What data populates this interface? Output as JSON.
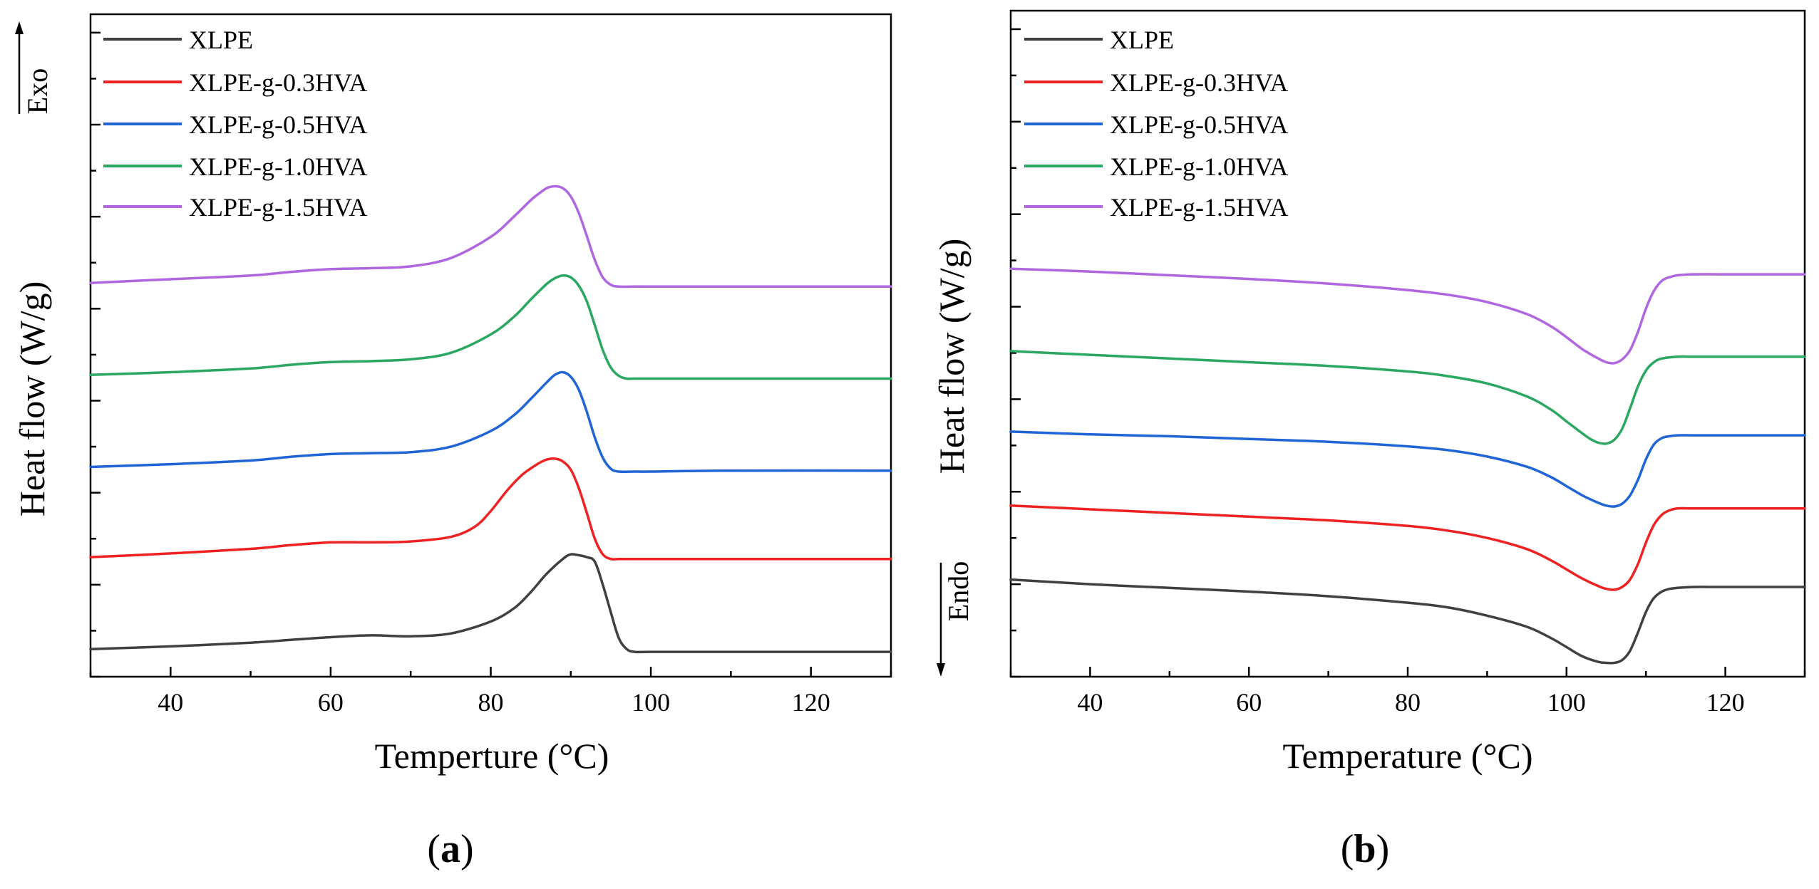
{
  "chart_data": [
    {
      "type": "line",
      "panel": "a",
      "panel_label": "a",
      "xlabel": "Temperture (°C)",
      "ylabel": "Heat flow (W/g)",
      "direction_label": "Exo",
      "xlim": [
        30,
        130
      ],
      "xticks": [
        40,
        60,
        80,
        100,
        120
      ],
      "y_ticks_labeled": false,
      "ylim": [
        0,
        7.2
      ],
      "legend_position": "top-left",
      "series": [
        {
          "name": "XLPE",
          "color": "#404040",
          "x": [
            30,
            40,
            50,
            55,
            60,
            65,
            70,
            75,
            80,
            83,
            85,
            87,
            89,
            90,
            91,
            92,
            93,
            94,
            95,
            96,
            97,
            98,
            100,
            110,
            130
          ],
          "y": [
            0.3,
            0.33,
            0.37,
            0.4,
            0.43,
            0.45,
            0.44,
            0.47,
            0.6,
            0.75,
            0.92,
            1.12,
            1.28,
            1.33,
            1.32,
            1.3,
            1.25,
            1.0,
            0.7,
            0.42,
            0.3,
            0.27,
            0.27,
            0.27,
            0.27
          ]
        },
        {
          "name": "XLPE-g-0.3HVA",
          "color": "#ee2222",
          "x": [
            30,
            40,
            50,
            55,
            60,
            65,
            70,
            75,
            78,
            80,
            82,
            84,
            86,
            87,
            88,
            89,
            90,
            91,
            92,
            93,
            94,
            95,
            96,
            98,
            100,
            110,
            130
          ],
          "y": [
            1.3,
            1.34,
            1.39,
            1.43,
            1.46,
            1.46,
            1.47,
            1.52,
            1.63,
            1.8,
            2.02,
            2.2,
            2.32,
            2.36,
            2.37,
            2.34,
            2.25,
            2.05,
            1.78,
            1.5,
            1.33,
            1.28,
            1.28,
            1.28,
            1.28,
            1.28,
            1.28
          ]
        },
        {
          "name": "XLPE-g-0.5HVA",
          "color": "#1f65d6",
          "x": [
            30,
            40,
            50,
            55,
            60,
            65,
            70,
            75,
            80,
            83,
            85,
            87,
            88,
            89,
            90,
            91,
            92,
            93,
            94,
            95,
            96,
            98,
            100,
            110,
            130
          ],
          "y": [
            2.28,
            2.31,
            2.35,
            2.39,
            2.42,
            2.43,
            2.44,
            2.5,
            2.67,
            2.85,
            3.02,
            3.2,
            3.28,
            3.31,
            3.26,
            3.12,
            2.88,
            2.6,
            2.38,
            2.26,
            2.23,
            2.23,
            2.23,
            2.24,
            2.24
          ]
        },
        {
          "name": "XLPE-g-1.0HVA",
          "color": "#2aa760",
          "x": [
            30,
            40,
            50,
            55,
            60,
            65,
            70,
            75,
            80,
            83,
            85,
            87,
            88,
            89,
            90,
            91,
            92,
            93,
            94,
            95,
            96,
            97,
            98,
            100,
            110,
            130
          ],
          "y": [
            3.28,
            3.31,
            3.35,
            3.39,
            3.42,
            3.43,
            3.45,
            3.52,
            3.72,
            3.92,
            4.1,
            4.27,
            4.33,
            4.36,
            4.34,
            4.25,
            4.08,
            3.82,
            3.55,
            3.36,
            3.27,
            3.24,
            3.24,
            3.24,
            3.24,
            3.24
          ]
        },
        {
          "name": "XLPE-g-1.5HVA",
          "color": "#b066e0",
          "x": [
            30,
            40,
            50,
            55,
            60,
            65,
            70,
            75,
            80,
            83,
            85,
            86,
            87,
            88,
            89,
            90,
            91,
            92,
            93,
            94,
            95,
            96,
            98,
            100,
            110,
            130
          ],
          "y": [
            4.28,
            4.32,
            4.36,
            4.4,
            4.43,
            4.44,
            4.46,
            4.55,
            4.78,
            5.01,
            5.18,
            5.25,
            5.31,
            5.33,
            5.31,
            5.22,
            5.04,
            4.79,
            4.53,
            4.34,
            4.26,
            4.24,
            4.24,
            4.24,
            4.24,
            4.24
          ]
        }
      ]
    },
    {
      "type": "line",
      "panel": "b",
      "panel_label": "b",
      "xlabel": "Temperature (°C)",
      "ylabel": "Heat flow (W/g)",
      "direction_label": "Endo",
      "xlim": [
        30,
        130
      ],
      "xticks": [
        40,
        60,
        80,
        100,
        120
      ],
      "y_ticks_labeled": false,
      "ylim": [
        0,
        7.2
      ],
      "legend_position": "top-left",
      "series": [
        {
          "name": "XLPE",
          "color": "#404040",
          "x": [
            30,
            40,
            50,
            60,
            70,
            80,
            85,
            90,
            95,
            98,
            100,
            102,
            104,
            105,
            106,
            107,
            108,
            109,
            110,
            111,
            112,
            113,
            114,
            116,
            120,
            130
          ],
          "y": [
            1.05,
            1.0,
            0.96,
            0.92,
            0.87,
            0.8,
            0.75,
            0.66,
            0.54,
            0.42,
            0.32,
            0.22,
            0.16,
            0.15,
            0.15,
            0.18,
            0.28,
            0.48,
            0.7,
            0.85,
            0.92,
            0.95,
            0.96,
            0.97,
            0.97,
            0.97
          ]
        },
        {
          "name": "XLPE-g-0.3HVA",
          "color": "#ee2222",
          "x": [
            30,
            40,
            50,
            60,
            70,
            80,
            85,
            90,
            95,
            98,
            100,
            102,
            104,
            105,
            106,
            107,
            108,
            109,
            110,
            111,
            112,
            113,
            114,
            116,
            120,
            130
          ],
          "y": [
            1.85,
            1.81,
            1.77,
            1.73,
            1.69,
            1.63,
            1.58,
            1.5,
            1.38,
            1.26,
            1.16,
            1.06,
            0.98,
            0.95,
            0.94,
            0.97,
            1.05,
            1.22,
            1.45,
            1.64,
            1.75,
            1.8,
            1.82,
            1.82,
            1.82,
            1.82
          ]
        },
        {
          "name": "XLPE-g-0.5HVA",
          "color": "#1f65d6",
          "x": [
            30,
            40,
            50,
            60,
            70,
            80,
            85,
            90,
            95,
            98,
            100,
            102,
            104,
            105,
            106,
            107,
            108,
            109,
            110,
            111,
            112,
            113,
            114,
            116,
            120,
            130
          ],
          "y": [
            2.65,
            2.62,
            2.6,
            2.57,
            2.54,
            2.49,
            2.45,
            2.38,
            2.27,
            2.16,
            2.06,
            1.96,
            1.88,
            1.85,
            1.84,
            1.87,
            1.96,
            2.13,
            2.35,
            2.51,
            2.58,
            2.6,
            2.61,
            2.61,
            2.61,
            2.61
          ]
        },
        {
          "name": "XLPE-g-1.0HVA",
          "color": "#2aa760",
          "x": [
            30,
            40,
            50,
            60,
            70,
            80,
            85,
            90,
            95,
            98,
            100,
            102,
            103,
            104,
            105,
            106,
            107,
            108,
            109,
            110,
            111,
            112,
            114,
            116,
            120,
            130
          ],
          "y": [
            3.52,
            3.48,
            3.44,
            3.4,
            3.36,
            3.3,
            3.25,
            3.17,
            3.03,
            2.89,
            2.76,
            2.63,
            2.57,
            2.53,
            2.52,
            2.56,
            2.68,
            2.9,
            3.14,
            3.31,
            3.4,
            3.44,
            3.46,
            3.46,
            3.46,
            3.46
          ]
        },
        {
          "name": "XLPE-g-1.5HVA",
          "color": "#b066e0",
          "x": [
            30,
            40,
            50,
            60,
            70,
            80,
            85,
            90,
            95,
            98,
            100,
            102,
            104,
            105,
            106,
            107,
            108,
            109,
            110,
            111,
            112,
            113,
            114,
            116,
            120,
            130
          ],
          "y": [
            4.41,
            4.38,
            4.34,
            4.3,
            4.25,
            4.18,
            4.13,
            4.05,
            3.92,
            3.79,
            3.67,
            3.54,
            3.44,
            3.4,
            3.39,
            3.43,
            3.53,
            3.73,
            3.98,
            4.17,
            4.28,
            4.32,
            4.34,
            4.35,
            4.35,
            4.35
          ]
        }
      ]
    }
  ]
}
